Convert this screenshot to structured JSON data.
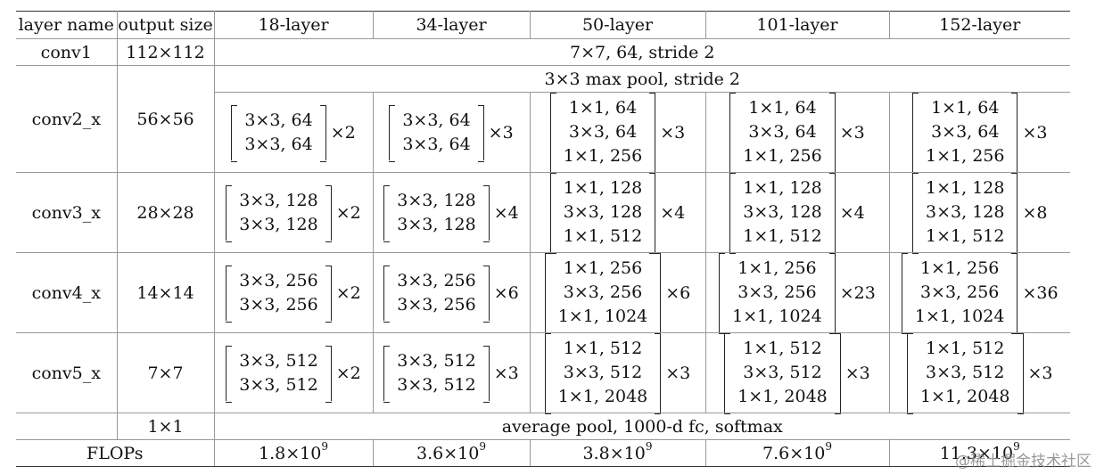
{
  "table": {
    "headers": [
      "layer name",
      "output size",
      "18-layer",
      "34-layer",
      "50-layer",
      "101-layer",
      "152-layer"
    ],
    "conv1": {
      "name": "conv1",
      "output": "112×112",
      "spec": "7×7, 64, stride 2"
    },
    "maxpool": {
      "spec": "3×3 max pool, stride 2"
    },
    "stages": [
      {
        "name": "conv2_x",
        "output": "56×56",
        "cells": [
          {
            "lines": [
              "3×3, 64",
              "3×3, 64"
            ],
            "mult": "×2"
          },
          {
            "lines": [
              "3×3, 64",
              "3×3, 64"
            ],
            "mult": "×3"
          },
          {
            "lines": [
              "1×1, 64",
              "3×3, 64",
              "1×1, 256"
            ],
            "mult": "×3"
          },
          {
            "lines": [
              "1×1, 64",
              "3×3, 64",
              "1×1, 256"
            ],
            "mult": "×3"
          },
          {
            "lines": [
              "1×1, 64",
              "3×3, 64",
              "1×1, 256"
            ],
            "mult": "×3"
          }
        ]
      },
      {
        "name": "conv3_x",
        "output": "28×28",
        "cells": [
          {
            "lines": [
              "3×3, 128",
              "3×3, 128"
            ],
            "mult": "×2"
          },
          {
            "lines": [
              "3×3, 128",
              "3×3, 128"
            ],
            "mult": "×4"
          },
          {
            "lines": [
              "1×1, 128",
              "3×3, 128",
              "1×1, 512"
            ],
            "mult": "×4"
          },
          {
            "lines": [
              "1×1, 128",
              "3×3, 128",
              "1×1, 512"
            ],
            "mult": "×4"
          },
          {
            "lines": [
              "1×1, 128",
              "3×3, 128",
              "1×1, 512"
            ],
            "mult": "×8"
          }
        ]
      },
      {
        "name": "conv4_x",
        "output": "14×14",
        "cells": [
          {
            "lines": [
              "3×3, 256",
              "3×3, 256"
            ],
            "mult": "×2"
          },
          {
            "lines": [
              "3×3, 256",
              "3×3, 256"
            ],
            "mult": "×6"
          },
          {
            "lines": [
              "1×1, 256",
              "3×3, 256",
              "1×1, 1024"
            ],
            "mult": "×6"
          },
          {
            "lines": [
              "1×1, 256",
              "3×3, 256",
              "1×1, 1024"
            ],
            "mult": "×23"
          },
          {
            "lines": [
              "1×1, 256",
              "3×3, 256",
              "1×1, 1024"
            ],
            "mult": "×36"
          }
        ]
      },
      {
        "name": "conv5_x",
        "output": "7×7",
        "cells": [
          {
            "lines": [
              "3×3, 512",
              "3×3, 512"
            ],
            "mult": "×2"
          },
          {
            "lines": [
              "3×3, 512",
              "3×3, 512"
            ],
            "mult": "×3"
          },
          {
            "lines": [
              "1×1, 512",
              "3×3, 512",
              "1×1, 2048"
            ],
            "mult": "×3"
          },
          {
            "lines": [
              "1×1, 512",
              "3×3, 512",
              "1×1, 2048"
            ],
            "mult": "×3"
          },
          {
            "lines": [
              "1×1, 512",
              "3×3, 512",
              "1×1, 2048"
            ],
            "mult": "×3"
          }
        ]
      }
    ],
    "final": {
      "output": "1×1",
      "spec": "average pool, 1000-d fc, softmax"
    },
    "flops": {
      "label": "FLOPs",
      "values": [
        {
          "mantissa": "1.8×10",
          "exp": "9"
        },
        {
          "mantissa": "3.6×10",
          "exp": "9"
        },
        {
          "mantissa": "3.8×10",
          "exp": "9"
        },
        {
          "mantissa": "7.6×10",
          "exp": "9"
        },
        {
          "mantissa": "11.3×10",
          "exp": "9"
        }
      ]
    }
  },
  "watermark": "@稀土掘金技术社区"
}
